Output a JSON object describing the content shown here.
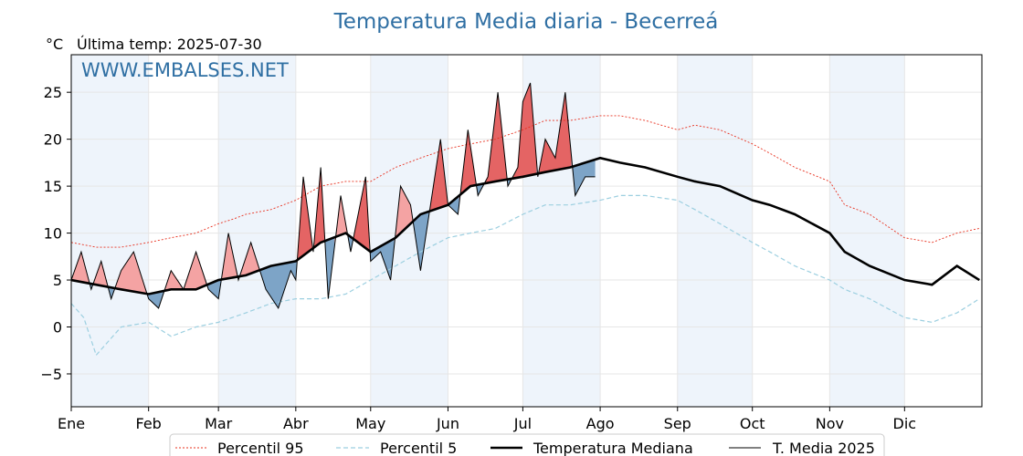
{
  "chart_data": {
    "type": "line",
    "title": "Temperatura Media diaria - Becerreá",
    "unit_label": "°C",
    "last_temp_label": "Última temp: 2025-07-30",
    "watermark": "WWW.EMBALSES.NET",
    "ylim": [
      -8.5,
      29.0
    ],
    "yticks": [
      "−5",
      "0",
      "5",
      "10",
      "15",
      "20",
      "25"
    ],
    "ytick_values": [
      -5,
      0,
      5,
      10,
      15,
      20,
      25
    ],
    "months": [
      "Ene",
      "Feb",
      "Mar",
      "Abr",
      "May",
      "Jun",
      "Jul",
      "Ago",
      "Sep",
      "Oct",
      "Nov",
      "Dic"
    ],
    "month_start_days": [
      0,
      31,
      59,
      90,
      120,
      151,
      181,
      212,
      243,
      273,
      304,
      334
    ],
    "days_in_year": 365,
    "grid": true,
    "legend_position": "bottom",
    "colors": {
      "p95": "#e8301e",
      "p5": "#9ccfe0",
      "median": "#000000",
      "t2025": "#000000",
      "above_fill": "#f4a3a3",
      "above_fill_strong": "#e46464",
      "below_fill": "#7da4c7",
      "band": "#eef4fb",
      "title": "#2f6fa3"
    },
    "series": [
      {
        "name": "Percentil 95",
        "x": [
          0,
          10,
          20,
          31,
          40,
          50,
          59,
          65,
          70,
          80,
          90,
          100,
          110,
          120,
          130,
          140,
          151,
          160,
          170,
          181,
          190,
          200,
          212,
          220,
          230,
          243,
          250,
          260,
          273,
          280,
          290,
          304,
          310,
          320,
          334,
          345,
          355,
          364
        ],
        "y": [
          9,
          8.5,
          8.5,
          9,
          9.5,
          10,
          11,
          11.5,
          12,
          12.5,
          13.5,
          15,
          15.5,
          15.5,
          17,
          18,
          19,
          19.5,
          20,
          21,
          22,
          22,
          22.5,
          22.5,
          22,
          21,
          21.5,
          21,
          19.5,
          18.5,
          17,
          15.5,
          13,
          12,
          9.5,
          9,
          10,
          10.5
        ]
      },
      {
        "name": "Percentil 5",
        "x": [
          0,
          5,
          10,
          20,
          31,
          40,
          50,
          59,
          70,
          80,
          90,
          100,
          110,
          120,
          130,
          140,
          151,
          160,
          170,
          181,
          190,
          200,
          212,
          220,
          230,
          243,
          250,
          260,
          273,
          280,
          290,
          304,
          310,
          320,
          334,
          345,
          355,
          364
        ],
        "y": [
          2.5,
          1,
          -3,
          0,
          0.5,
          -1,
          0,
          0.5,
          1.5,
          2.5,
          3,
          3,
          3.5,
          5,
          6.5,
          8,
          9.5,
          10,
          10.5,
          12,
          13,
          13,
          13.5,
          14,
          14,
          13.5,
          12.5,
          11,
          9,
          8,
          6.5,
          5,
          4,
          3,
          1,
          0.5,
          1.5,
          3
        ]
      },
      {
        "name": "Temperatura Mediana",
        "x": [
          0,
          10,
          20,
          31,
          40,
          50,
          59,
          70,
          80,
          90,
          100,
          110,
          120,
          130,
          140,
          151,
          160,
          170,
          181,
          190,
          200,
          212,
          220,
          230,
          243,
          250,
          260,
          273,
          280,
          290,
          304,
          310,
          320,
          334,
          345,
          355,
          364
        ],
        "y": [
          5,
          4.5,
          4,
          3.5,
          4,
          4,
          5,
          5.5,
          6.5,
          7,
          9,
          10,
          8,
          9.5,
          12,
          13,
          15,
          15.5,
          16,
          16.5,
          17,
          18,
          17.5,
          17,
          16,
          15.5,
          15,
          13.5,
          13,
          12,
          10,
          8,
          6.5,
          5,
          4.5,
          6.5,
          5
        ]
      },
      {
        "name": "T. Media 2025",
        "x": [
          0,
          4,
          8,
          12,
          16,
          20,
          25,
          31,
          35,
          40,
          45,
          50,
          55,
          59,
          63,
          67,
          72,
          78,
          83,
          88,
          90,
          93,
          97,
          100,
          103,
          108,
          112,
          118,
          120,
          124,
          128,
          132,
          136,
          140,
          144,
          148,
          151,
          155,
          159,
          163,
          167,
          171,
          175,
          179,
          181,
          184,
          187,
          190,
          194,
          198,
          202,
          206,
          210
        ],
        "y": [
          5,
          8,
          4,
          7,
          3,
          6,
          8,
          3,
          2,
          6,
          4,
          8,
          4,
          3,
          10,
          5,
          9,
          4,
          2,
          6,
          5,
          16,
          8,
          17,
          3,
          14,
          8,
          16,
          7,
          8,
          5,
          15,
          13,
          6,
          13,
          20,
          13,
          12,
          21,
          14,
          16,
          25,
          15,
          17,
          24,
          26,
          16,
          20,
          18,
          25,
          14,
          16,
          16
        ]
      }
    ]
  }
}
